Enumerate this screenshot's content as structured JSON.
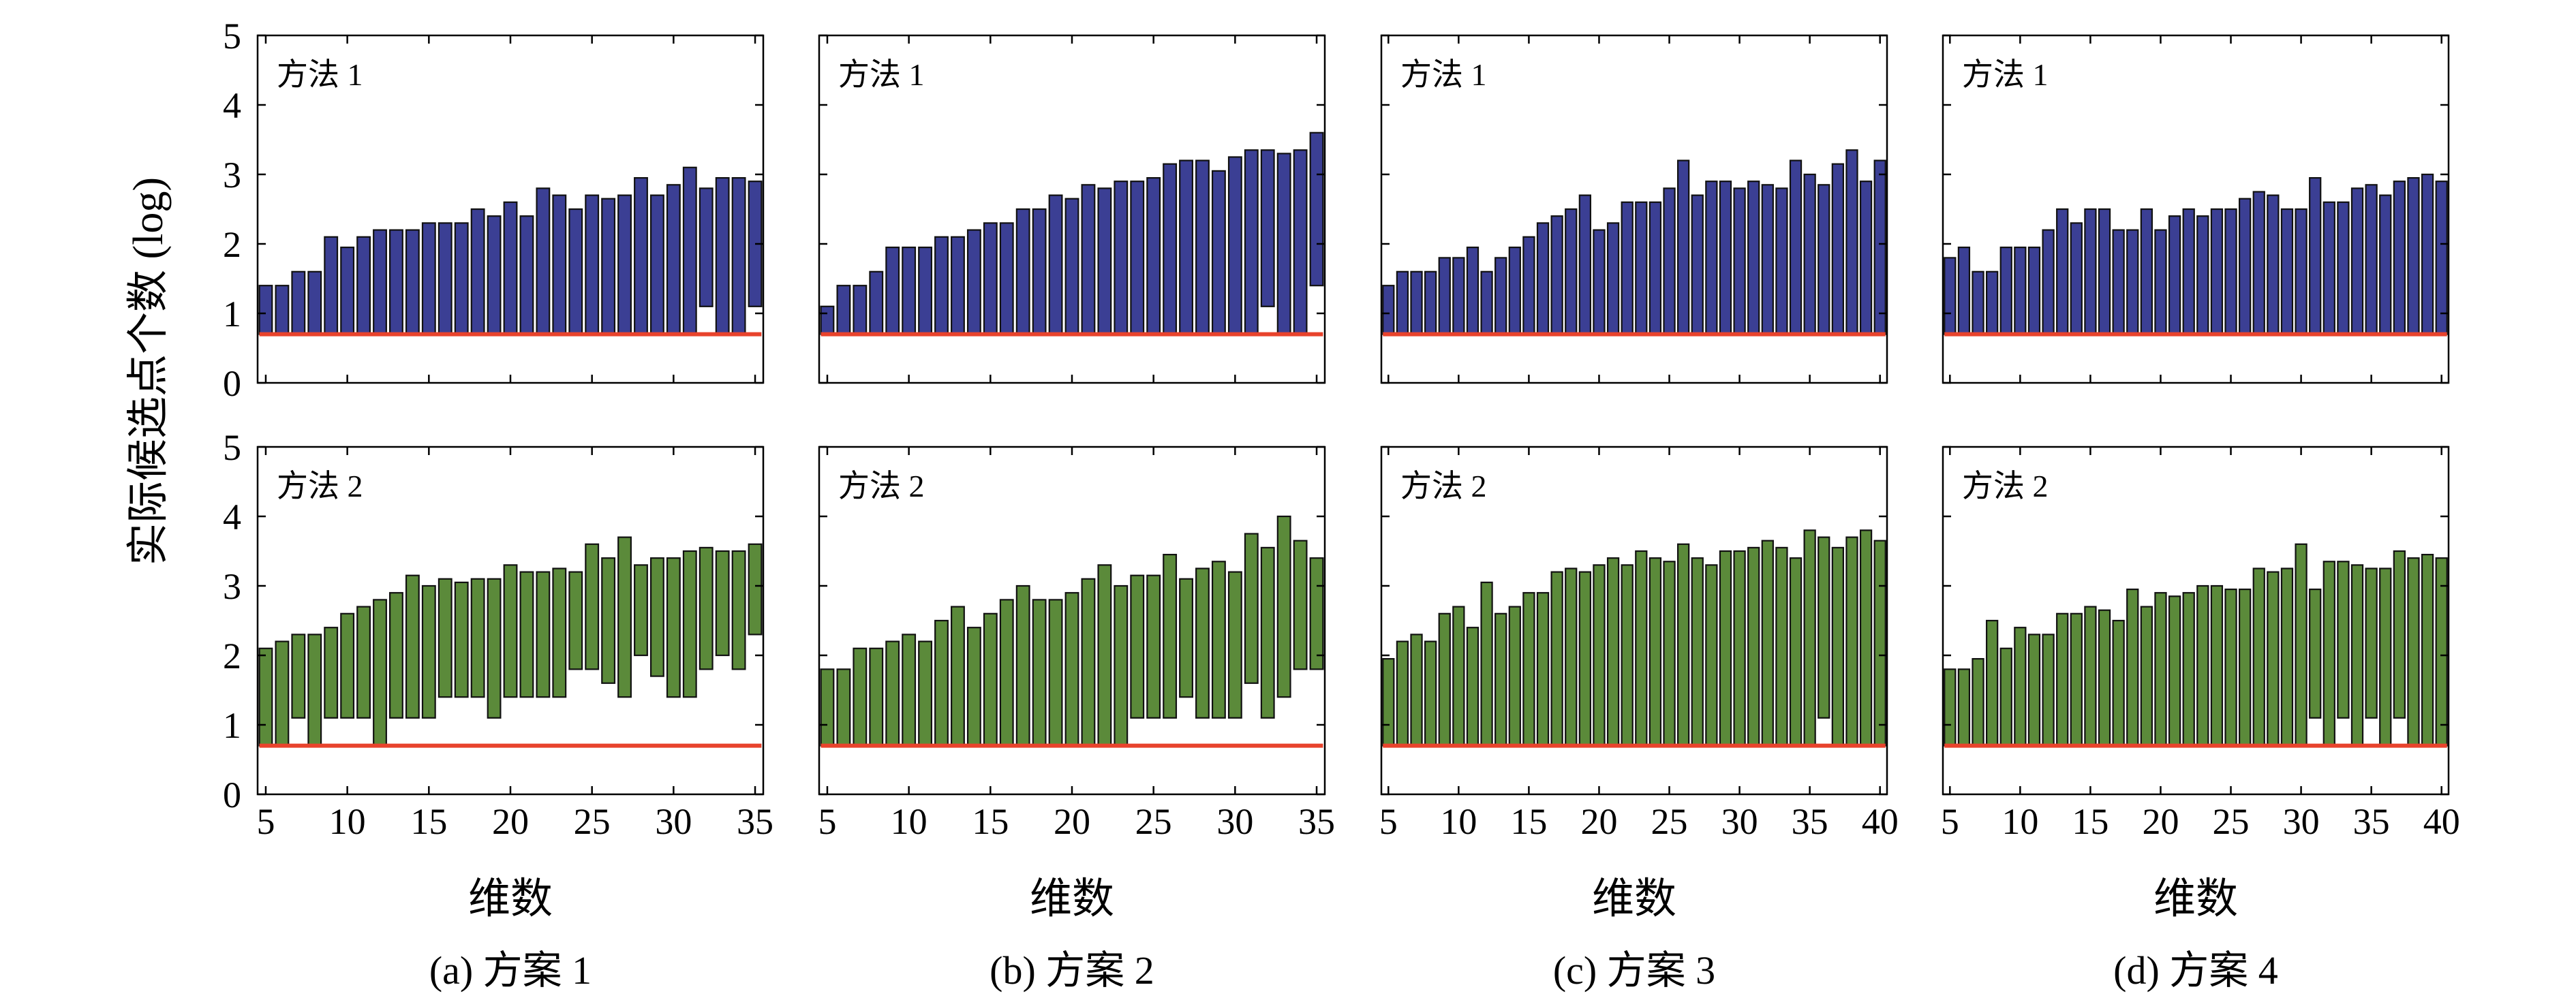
{
  "figure": {
    "ylabel": "实际候选点个数 (log)",
    "xlabel": "维数",
    "row_labels": [
      "方法 1",
      "方法 2"
    ],
    "colors": {
      "method1": "#3b3f94",
      "method2": "#5b8a3a",
      "baseline": "#e8432c"
    }
  },
  "chart_data": [
    {
      "type": "bar",
      "caption": "(a) 方案 1",
      "x": [
        5,
        6,
        7,
        8,
        9,
        10,
        11,
        12,
        13,
        14,
        15,
        16,
        17,
        18,
        19,
        20,
        21,
        22,
        23,
        24,
        25,
        26,
        27,
        28,
        29,
        30,
        31,
        32,
        33,
        34,
        35
      ],
      "xlim": [
        4.5,
        35.5
      ],
      "xticks": [
        5,
        10,
        15,
        20,
        25,
        30,
        35
      ],
      "ylim": [
        0,
        5
      ],
      "yticks": [
        0,
        1,
        2,
        3,
        4,
        5
      ],
      "baseline": 0.7,
      "series": [
        {
          "name": "方法 1",
          "low": [
            0.7,
            0.7,
            0.7,
            0.7,
            0.7,
            0.7,
            0.7,
            0.7,
            0.7,
            0.7,
            0.7,
            0.7,
            0.7,
            0.7,
            0.7,
            0.7,
            0.7,
            0.7,
            0.7,
            0.7,
            0.7,
            0.7,
            0.7,
            0.7,
            0.7,
            0.7,
            0.7,
            1.1,
            0.7,
            0.7,
            1.1
          ],
          "high": [
            1.4,
            1.4,
            1.6,
            1.6,
            2.1,
            1.95,
            2.1,
            2.2,
            2.2,
            2.2,
            2.3,
            2.3,
            2.3,
            2.5,
            2.4,
            2.6,
            2.4,
            2.8,
            2.7,
            2.5,
            2.7,
            2.65,
            2.7,
            2.95,
            2.7,
            2.85,
            3.1,
            2.8,
            2.95,
            2.95,
            2.9
          ]
        },
        {
          "name": "方法 2",
          "low": [
            0.7,
            0.7,
            1.1,
            0.7,
            1.1,
            1.1,
            1.1,
            0.7,
            1.1,
            1.1,
            1.1,
            1.4,
            1.4,
            1.4,
            1.1,
            1.4,
            1.4,
            1.4,
            1.4,
            1.8,
            1.8,
            1.6,
            1.4,
            2.0,
            1.7,
            1.4,
            1.4,
            1.8,
            2.0,
            1.8,
            2.3
          ],
          "high": [
            2.1,
            2.2,
            2.3,
            2.3,
            2.4,
            2.6,
            2.7,
            2.8,
            2.9,
            3.15,
            3.0,
            3.1,
            3.05,
            3.1,
            3.1,
            3.3,
            3.2,
            3.2,
            3.25,
            3.2,
            3.6,
            3.4,
            3.7,
            3.3,
            3.4,
            3.4,
            3.5,
            3.55,
            3.5,
            3.5,
            3.6
          ]
        }
      ]
    },
    {
      "type": "bar",
      "caption": "(b) 方案 2",
      "x": [
        5,
        6,
        7,
        8,
        9,
        10,
        11,
        12,
        13,
        14,
        15,
        16,
        17,
        18,
        19,
        20,
        21,
        22,
        23,
        24,
        25,
        26,
        27,
        28,
        29,
        30,
        31,
        32,
        33,
        34,
        35
      ],
      "xlim": [
        4.5,
        35.5
      ],
      "xticks": [
        5,
        10,
        15,
        20,
        25,
        30,
        35
      ],
      "ylim": [
        0,
        5
      ],
      "yticks": [
        0,
        1,
        2,
        3,
        4,
        5
      ],
      "baseline": 0.7,
      "series": [
        {
          "name": "方法 1",
          "low": [
            0.7,
            0.7,
            0.7,
            0.7,
            0.7,
            0.7,
            0.7,
            0.7,
            0.7,
            0.7,
            0.7,
            0.7,
            0.7,
            0.7,
            0.7,
            0.7,
            0.7,
            0.7,
            0.7,
            0.7,
            0.7,
            0.7,
            0.7,
            0.7,
            0.7,
            0.7,
            0.7,
            1.1,
            0.7,
            0.7,
            1.4
          ],
          "high": [
            1.1,
            1.4,
            1.4,
            1.6,
            1.95,
            1.95,
            1.95,
            2.1,
            2.1,
            2.2,
            2.3,
            2.3,
            2.5,
            2.5,
            2.7,
            2.65,
            2.85,
            2.8,
            2.9,
            2.9,
            2.95,
            3.15,
            3.2,
            3.2,
            3.05,
            3.25,
            3.35,
            3.35,
            3.3,
            3.35,
            3.6
          ]
        },
        {
          "name": "方法 2",
          "low": [
            0.7,
            0.7,
            0.7,
            0.7,
            0.7,
            0.7,
            0.7,
            0.7,
            0.7,
            0.7,
            0.7,
            0.7,
            0.7,
            0.7,
            0.7,
            0.7,
            0.7,
            0.7,
            0.7,
            1.1,
            1.1,
            1.1,
            1.4,
            1.1,
            1.1,
            1.1,
            1.6,
            1.1,
            1.4,
            1.8,
            1.8
          ],
          "high": [
            1.8,
            1.8,
            2.1,
            2.1,
            2.2,
            2.3,
            2.2,
            2.5,
            2.7,
            2.4,
            2.6,
            2.8,
            3.0,
            2.8,
            2.8,
            2.9,
            3.1,
            3.3,
            3.0,
            3.15,
            3.15,
            3.45,
            3.1,
            3.25,
            3.35,
            3.2,
            3.75,
            3.55,
            4.0,
            3.65,
            3.4
          ]
        }
      ]
    },
    {
      "type": "bar",
      "caption": "(c) 方案 3",
      "x": [
        5,
        6,
        7,
        8,
        9,
        10,
        11,
        12,
        13,
        14,
        15,
        16,
        17,
        18,
        19,
        20,
        21,
        22,
        23,
        24,
        25,
        26,
        27,
        28,
        29,
        30,
        31,
        32,
        33,
        34,
        35,
        36,
        37,
        38,
        39,
        40
      ],
      "xlim": [
        4.5,
        40.5
      ],
      "xticks": [
        5,
        10,
        15,
        20,
        25,
        30,
        35,
        40
      ],
      "ylim": [
        0,
        5
      ],
      "yticks": [
        0,
        1,
        2,
        3,
        4,
        5
      ],
      "baseline": 0.7,
      "series": [
        {
          "name": "方法 1",
          "low": [
            0.7,
            0.7,
            0.7,
            0.7,
            0.7,
            0.7,
            0.7,
            0.7,
            0.7,
            0.7,
            0.7,
            0.7,
            0.7,
            0.7,
            0.7,
            0.7,
            0.7,
            0.7,
            0.7,
            0.7,
            0.7,
            0.7,
            0.7,
            0.7,
            0.7,
            0.7,
            0.7,
            0.7,
            0.7,
            0.7,
            0.7,
            0.7,
            0.7,
            0.7,
            0.7,
            0.7
          ],
          "high": [
            1.4,
            1.6,
            1.6,
            1.6,
            1.8,
            1.8,
            1.95,
            1.6,
            1.8,
            1.95,
            2.1,
            2.3,
            2.4,
            2.5,
            2.7,
            2.2,
            2.3,
            2.6,
            2.6,
            2.6,
            2.8,
            3.2,
            2.7,
            2.9,
            2.9,
            2.8,
            2.9,
            2.85,
            2.8,
            3.2,
            3.0,
            2.85,
            3.15,
            3.35,
            2.9,
            3.2
          ]
        },
        {
          "name": "方法 2",
          "low": [
            0.7,
            0.7,
            0.7,
            0.7,
            0.7,
            0.7,
            0.7,
            0.7,
            0.7,
            0.7,
            0.7,
            0.7,
            0.7,
            0.7,
            0.7,
            0.7,
            0.7,
            0.7,
            0.7,
            0.7,
            0.7,
            0.7,
            0.7,
            0.7,
            0.7,
            0.7,
            0.7,
            0.7,
            0.7,
            0.7,
            0.7,
            1.1,
            0.7,
            0.7,
            0.7,
            0.7
          ],
          "high": [
            1.95,
            2.2,
            2.3,
            2.2,
            2.6,
            2.7,
            2.4,
            3.05,
            2.6,
            2.7,
            2.9,
            2.9,
            3.2,
            3.25,
            3.2,
            3.3,
            3.4,
            3.3,
            3.5,
            3.4,
            3.35,
            3.6,
            3.4,
            3.3,
            3.5,
            3.5,
            3.55,
            3.65,
            3.55,
            3.4,
            3.8,
            3.7,
            3.55,
            3.7,
            3.8,
            3.65
          ]
        }
      ]
    },
    {
      "type": "bar",
      "caption": "(d) 方案 4",
      "x": [
        5,
        6,
        7,
        8,
        9,
        10,
        11,
        12,
        13,
        14,
        15,
        16,
        17,
        18,
        19,
        20,
        21,
        22,
        23,
        24,
        25,
        26,
        27,
        28,
        29,
        30,
        31,
        32,
        33,
        34,
        35,
        36,
        37,
        38,
        39,
        40
      ],
      "xlim": [
        4.5,
        40.5
      ],
      "xticks": [
        5,
        10,
        15,
        20,
        25,
        30,
        35,
        40
      ],
      "ylim": [
        0,
        5
      ],
      "yticks": [
        0,
        1,
        2,
        3,
        4,
        5
      ],
      "baseline": 0.7,
      "series": [
        {
          "name": "方法 1",
          "low": [
            0.7,
            0.7,
            0.7,
            0.7,
            0.7,
            0.7,
            0.7,
            0.7,
            0.7,
            0.7,
            0.7,
            0.7,
            0.7,
            0.7,
            0.7,
            0.7,
            0.7,
            0.7,
            0.7,
            0.7,
            0.7,
            0.7,
            0.7,
            0.7,
            0.7,
            0.7,
            0.7,
            0.7,
            0.7,
            0.7,
            0.7,
            0.7,
            0.7,
            0.7,
            0.7,
            0.7
          ],
          "high": [
            1.8,
            1.95,
            1.6,
            1.6,
            1.95,
            1.95,
            1.95,
            2.2,
            2.5,
            2.3,
            2.5,
            2.5,
            2.2,
            2.2,
            2.5,
            2.2,
            2.4,
            2.5,
            2.4,
            2.5,
            2.5,
            2.65,
            2.75,
            2.7,
            2.5,
            2.5,
            2.95,
            2.6,
            2.6,
            2.8,
            2.85,
            2.7,
            2.9,
            2.95,
            3.0,
            2.9
          ]
        },
        {
          "name": "方法 2",
          "low": [
            0.7,
            0.7,
            0.7,
            0.7,
            0.7,
            0.7,
            0.7,
            0.7,
            0.7,
            0.7,
            0.7,
            0.7,
            0.7,
            0.7,
            0.7,
            0.7,
            0.7,
            0.7,
            0.7,
            0.7,
            0.7,
            0.7,
            0.7,
            0.7,
            0.7,
            0.7,
            1.1,
            0.7,
            1.1,
            0.7,
            1.1,
            0.7,
            1.1,
            0.7,
            0.7,
            0.7
          ],
          "high": [
            1.8,
            1.8,
            1.95,
            2.5,
            2.1,
            2.4,
            2.3,
            2.3,
            2.6,
            2.6,
            2.7,
            2.65,
            2.5,
            2.95,
            2.7,
            2.9,
            2.85,
            2.9,
            3.0,
            3.0,
            2.95,
            2.95,
            3.25,
            3.2,
            3.25,
            3.6,
            2.95,
            3.35,
            3.35,
            3.3,
            3.25,
            3.25,
            3.5,
            3.4,
            3.45,
            3.4
          ]
        }
      ]
    }
  ]
}
